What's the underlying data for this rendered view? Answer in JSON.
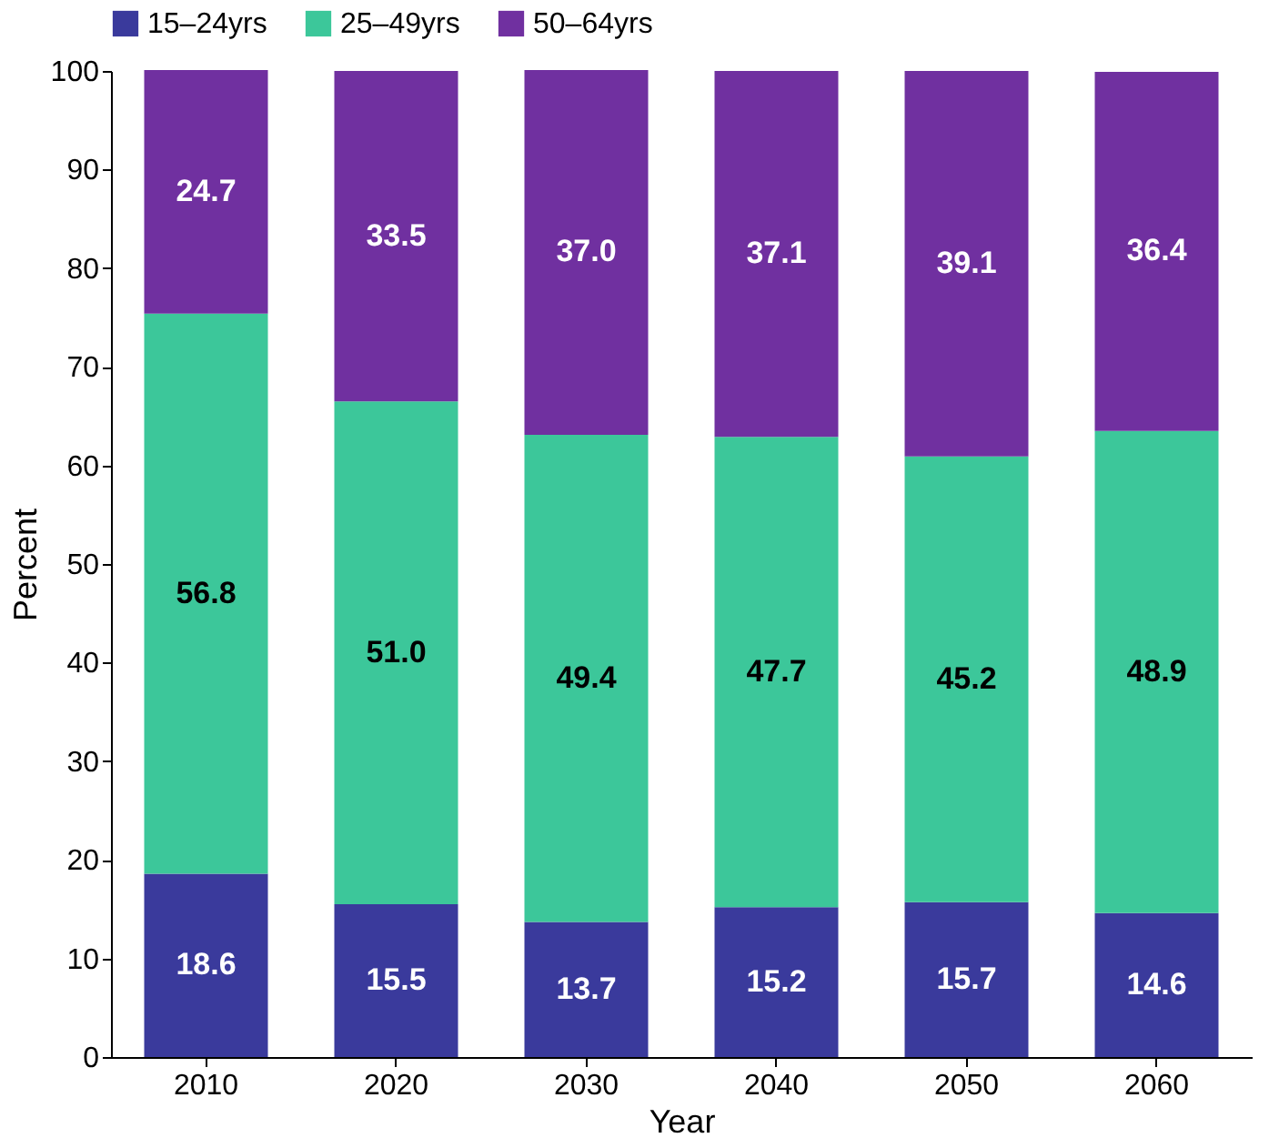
{
  "chart_data": {
    "type": "bar",
    "stacked": true,
    "xlabel": "Year",
    "ylabel": "Percent",
    "categories": [
      "2010",
      "2020",
      "2030",
      "2040",
      "2050",
      "2060"
    ],
    "series": [
      {
        "name": "15–24yrs",
        "color": "#3a3a9c",
        "values": [
          18.6,
          15.5,
          13.7,
          15.2,
          15.7,
          14.6
        ],
        "value_labels": [
          "18.6",
          "15.5",
          "13.7",
          "15.2",
          "15.7",
          "14.6"
        ]
      },
      {
        "name": "25–49yrs",
        "color": "#3cc79a",
        "values": [
          56.8,
          51.0,
          49.4,
          47.7,
          45.2,
          48.9
        ],
        "value_labels": [
          "56.8",
          "51.0",
          "49.4",
          "47.7",
          "45.2",
          "48.9"
        ]
      },
      {
        "name": "50–64yrs",
        "color": "#7030a0",
        "values": [
          24.7,
          33.5,
          37.0,
          37.1,
          39.1,
          36.4
        ],
        "value_labels": [
          "24.7",
          "33.5",
          "37.0",
          "37.1",
          "39.1",
          "36.4"
        ]
      }
    ],
    "ylim": [
      0,
      100
    ],
    "yticks": [
      0,
      10,
      20,
      30,
      40,
      50,
      60,
      70,
      80,
      90,
      100
    ],
    "grid": false,
    "legend": "top"
  }
}
